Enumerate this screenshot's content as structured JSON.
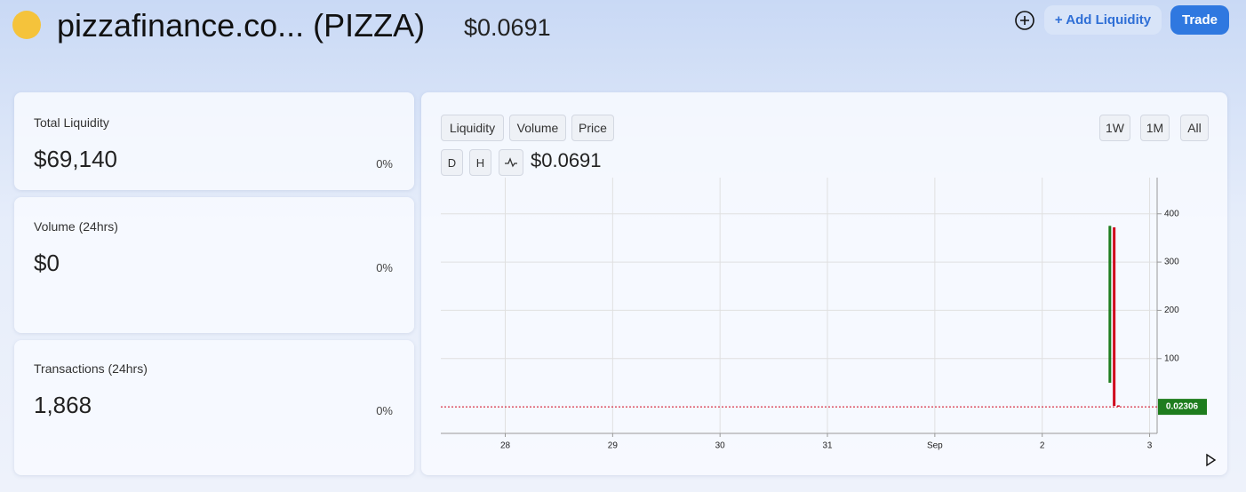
{
  "header": {
    "title": "pizzafinance.co... (PIZZA)",
    "price": "$0.0691",
    "add_liquidity": "+ Add Liquidity",
    "trade": "Trade"
  },
  "stats": [
    {
      "label": "Total Liquidity",
      "value": "$69,140",
      "change": "0%"
    },
    {
      "label": "Volume (24hrs)",
      "value": "$0",
      "change": "0%"
    },
    {
      "label": "Transactions (24hrs)",
      "value": "1,868",
      "change": "0%"
    }
  ],
  "tabs": [
    "Liquidity",
    "Volume",
    "Price"
  ],
  "ranges": [
    "1W",
    "1M",
    "All"
  ],
  "intervals": [
    "D",
    "H"
  ],
  "chart_price": "$0.0691",
  "chart_data": {
    "type": "candlestick",
    "x": [
      5.63,
      5.67,
      5.71
    ],
    "open": [
      50,
      372,
      3
    ],
    "high": [
      375,
      372,
      3
    ],
    "low": [
      50,
      2,
      0.5
    ],
    "close": [
      375,
      2,
      0.5
    ],
    "up_color": "#1e7d1e",
    "down_color": "#d0021b",
    "xlim": [
      -0.6,
      6.07
    ],
    "xticks": [
      {
        "value": 0,
        "label": "28"
      },
      {
        "value": 1,
        "label": "29"
      },
      {
        "value": 2,
        "label": "30"
      },
      {
        "value": 3,
        "label": "31"
      },
      {
        "value": 4,
        "label": "Sep"
      },
      {
        "value": 5,
        "label": "2"
      },
      {
        "value": 6,
        "label": "3"
      }
    ],
    "ylim": [
      -55,
      475
    ],
    "yticks": [
      100,
      200,
      300,
      400
    ],
    "last_price": 0.02306,
    "grid": true
  }
}
